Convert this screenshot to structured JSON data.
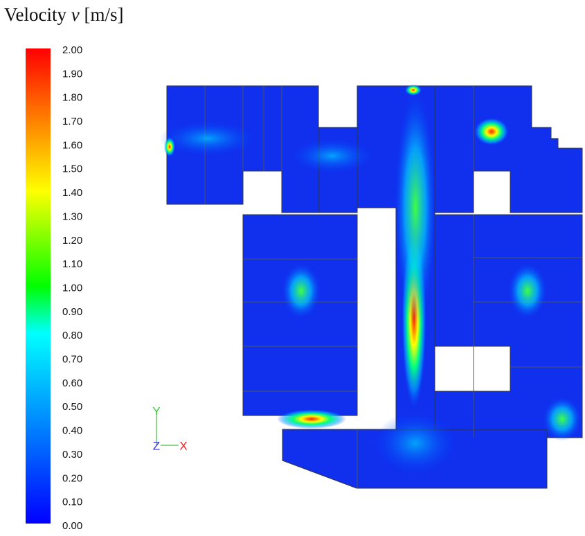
{
  "title": {
    "prefix": "Velocity",
    "symbol": "v",
    "unit": "[m/s]"
  },
  "colorbar": {
    "ticks": [
      "2.00",
      "1.90",
      "1.80",
      "1.70",
      "1.60",
      "1.50",
      "1.40",
      "1.30",
      "1.20",
      "1.10",
      "1.00",
      "0.90",
      "0.80",
      "0.70",
      "0.60",
      "0.50",
      "0.40",
      "0.30",
      "0.20",
      "0.10",
      "0.00"
    ]
  },
  "axes": {
    "y": "Y",
    "z": "Z",
    "x": "X"
  }
}
